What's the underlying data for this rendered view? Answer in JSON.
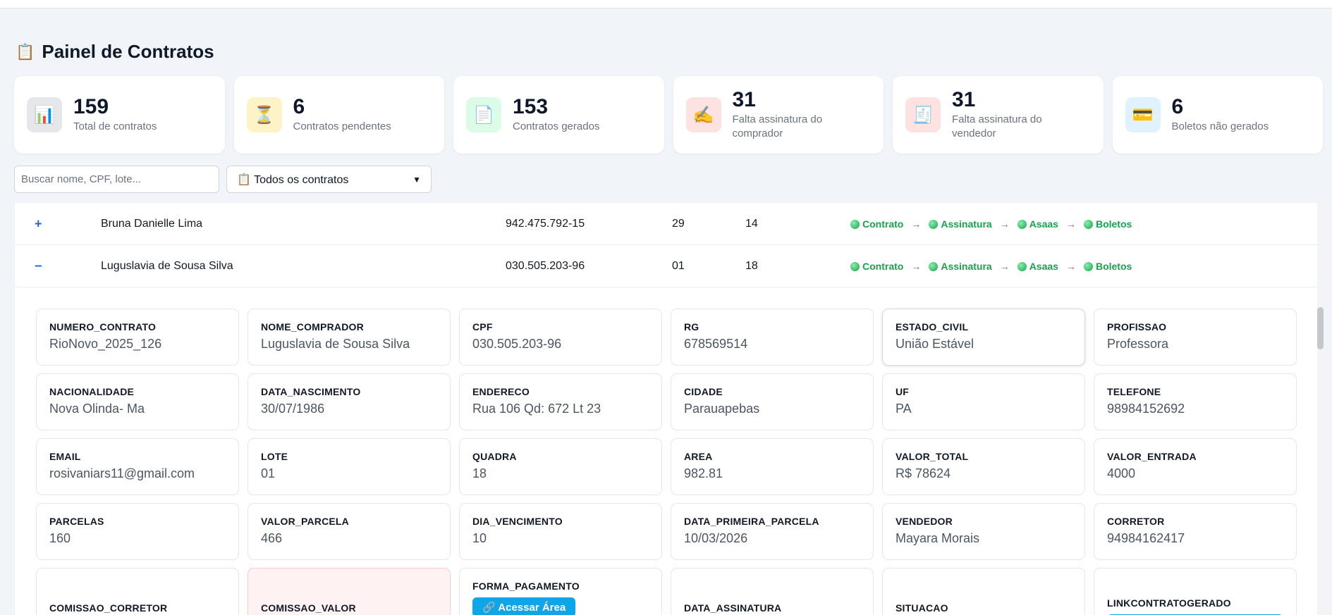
{
  "page": {
    "title": "Painel de Contratos",
    "title_icon": "📋"
  },
  "stats": [
    {
      "icon": "📊",
      "value": "159",
      "label": "Total de contratos",
      "bg": "#e5e7eb"
    },
    {
      "icon": "⏳",
      "value": "6",
      "label": "Contratos pendentes",
      "bg": "#fef3c7"
    },
    {
      "icon": "📄",
      "value": "153",
      "label": "Contratos gerados",
      "bg": "#dcfce7"
    },
    {
      "icon": "✍️",
      "value": "31",
      "label": "Falta assinatura do comprador",
      "bg": "#fee2e2"
    },
    {
      "icon": "🧾",
      "value": "31",
      "label": "Falta assinatura do vendedor",
      "bg": "#fee2e2"
    },
    {
      "icon": "💳",
      "value": "6",
      "label": "Boletos não gerados",
      "bg": "#e0f2fe"
    }
  ],
  "filters": {
    "search_placeholder": "Buscar nome, CPF, lote...",
    "select_value": "📋 Todos os contratos"
  },
  "steps": [
    "Contrato",
    "Assinatura",
    "Asaas",
    "Boletos"
  ],
  "rows": [
    {
      "toggle": "+",
      "name": "Bruna Danielle Lima",
      "cpf": "942.475.792-15",
      "lote": "29",
      "quadra": "14"
    },
    {
      "toggle": "−",
      "name": "Luguslavia de Sousa Silva",
      "cpf": "030.505.203-96",
      "lote": "01",
      "quadra": "18"
    }
  ],
  "detail": {
    "numero_contrato": {
      "key": "NUMERO_CONTRATO",
      "value": "RioNovo_2025_126"
    },
    "nome_comprador": {
      "key": "NOME_COMPRADOR",
      "value": "Luguslavia de Sousa Silva"
    },
    "cpf": {
      "key": "CPF",
      "value": "030.505.203-96"
    },
    "rg": {
      "key": "RG",
      "value": "678569514"
    },
    "estado_civil": {
      "key": "ESTADO_CIVIL",
      "value": "União Estável"
    },
    "profissao": {
      "key": "PROFISSAO",
      "value": "Professora"
    },
    "nacionalidade": {
      "key": "NACIONALIDADE",
      "value": "Nova Olinda- Ma"
    },
    "data_nascimento": {
      "key": "DATA_NASCIMENTO",
      "value": "30/07/1986"
    },
    "endereco": {
      "key": "ENDERECO",
      "value": "Rua 106 Qd: 672 Lt 23"
    },
    "cidade": {
      "key": "CIDADE",
      "value": "Parauapebas"
    },
    "uf": {
      "key": "UF",
      "value": "PA"
    },
    "telefone": {
      "key": "TELEFONE",
      "value": "98984152692"
    },
    "email": {
      "key": "EMAIL",
      "value": "rosivaniars11@gmail.com"
    },
    "lote": {
      "key": "LOTE",
      "value": "01"
    },
    "quadra": {
      "key": "QUADRA",
      "value": "18"
    },
    "area": {
      "key": "AREA",
      "value": "982.81"
    },
    "valor_total": {
      "key": "VALOR_TOTAL",
      "value": "R$ 78624"
    },
    "valor_entrada": {
      "key": "VALOR_ENTRADA",
      "value": "4000"
    },
    "parcelas": {
      "key": "PARCELAS",
      "value": "160"
    },
    "valor_parcela": {
      "key": "VALOR_PARCELA",
      "value": "466"
    },
    "dia_vencimento": {
      "key": "DIA_VENCIMENTO",
      "value": "10"
    },
    "data_primeira_parcela": {
      "key": "DATA_PRIMEIRA_PARCELA",
      "value": "10/03/2026"
    },
    "vendedor": {
      "key": "VENDEDOR",
      "value": "Mayara Morais"
    },
    "corretor": {
      "key": "CORRETOR",
      "value": "94984162417"
    },
    "comissao_corretor": {
      "key": "COMISSAO_CORRETOR"
    },
    "comissao_valor": {
      "key": "COMISSAO_VALOR"
    },
    "forma_pagamento": {
      "key": "FORMA_PAGAMENTO",
      "button": "🔗 Acessar Área"
    },
    "data_assinatura": {
      "key": "DATA_ASSINATURA"
    },
    "situacao": {
      "key": "SITUACAO"
    },
    "linkcontratogerado": {
      "key": "LINKCONTRATOGERADO"
    }
  }
}
